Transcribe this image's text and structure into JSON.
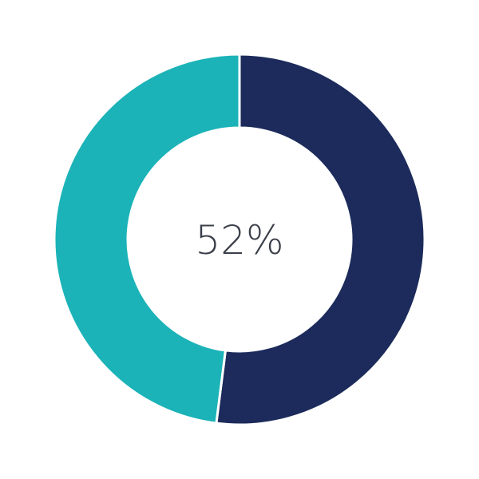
{
  "chart_data": {
    "type": "pie",
    "variant": "donut",
    "categories": [
      "",
      ""
    ],
    "values": [
      52,
      48
    ],
    "colors": [
      "#1c2b5b",
      "#1bb3b8"
    ],
    "center_label": "52%",
    "start": "top",
    "direction": "clockwise",
    "legend": "none"
  }
}
